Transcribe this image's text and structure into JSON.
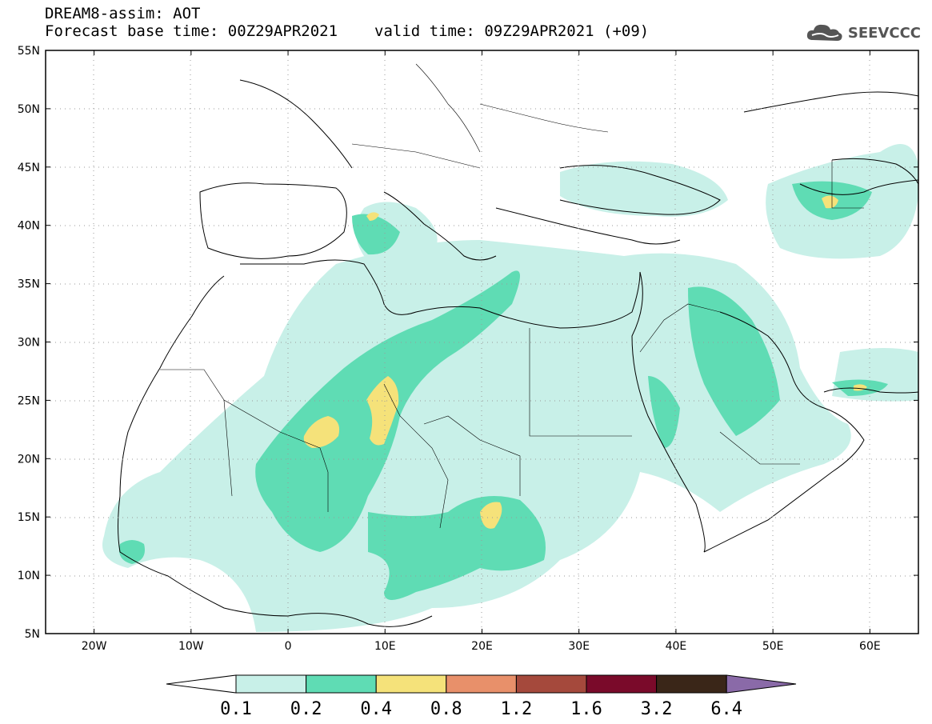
{
  "header": {
    "title": "DREAM8-assim: AOT",
    "base_time": "Forecast base time: 00Z29APR2021",
    "valid_time": "valid time: 09Z29APR2021 (+09)",
    "logo": "SEEVCCC"
  },
  "map": {
    "lon_range": [
      -25,
      65
    ],
    "lat_range": [
      5,
      55
    ],
    "lat_ticks": [
      "55N",
      "50N",
      "45N",
      "40N",
      "35N",
      "30N",
      "25N",
      "20N",
      "15N",
      "10N",
      "5N"
    ],
    "lon_ticks": [
      "20W",
      "10W",
      "0",
      "10E",
      "20E",
      "30E",
      "40E",
      "50E",
      "60E"
    ]
  },
  "colorbar": {
    "levels": [
      "0.1",
      "0.2",
      "0.4",
      "0.8",
      "1.2",
      "1.6",
      "3.2",
      "6.4"
    ],
    "colors": [
      "#ffffff",
      "#c8f0e8",
      "#5fdcb4",
      "#f5e27a",
      "#e8906a",
      "#a5493c",
      "#7a0a2a",
      "#3a2618",
      "#8a6aa8"
    ]
  },
  "fill_colors": {
    "low": "#c8f0e8",
    "mid": "#5fdcb4",
    "high": "#f5e27a"
  }
}
